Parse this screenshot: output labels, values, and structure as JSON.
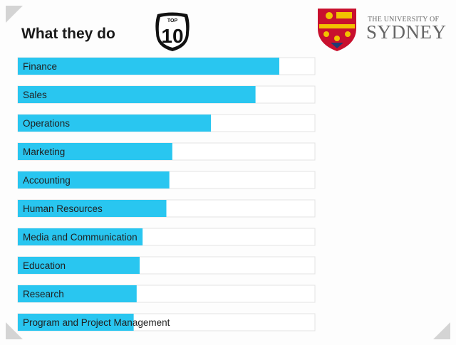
{
  "slide": {
    "title": "What they do",
    "badge": {
      "top_text": "TOP",
      "number": "10"
    },
    "logo": {
      "line1": "THE UNIVERSITY OF",
      "line2": "SYDNEY"
    }
  },
  "chart_data": {
    "type": "bar",
    "orientation": "horizontal",
    "categories": [
      "Finance",
      "Sales",
      "Operations",
      "Marketing",
      "Accounting",
      "Human Resources",
      "Media and Communication",
      "Education",
      "Research",
      "Program and Project Management"
    ],
    "values": [
      0.88,
      0.8,
      0.65,
      0.52,
      0.51,
      0.5,
      0.42,
      0.41,
      0.4,
      0.39
    ],
    "xlim": [
      0,
      1
    ],
    "grid": false,
    "legend": "none",
    "colors": {
      "bar": "#29c6f0",
      "track": "#ffffff",
      "track_border": "#e3e3e3"
    }
  }
}
